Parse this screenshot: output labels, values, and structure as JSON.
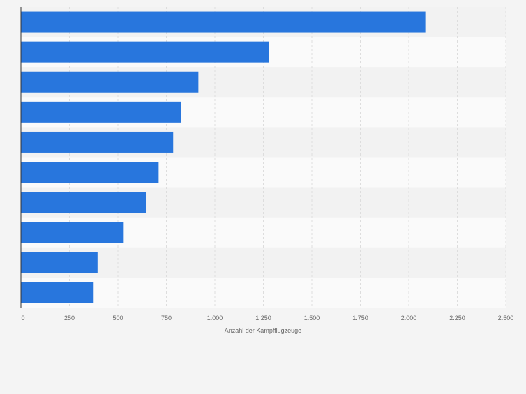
{
  "chart_data": {
    "type": "bar",
    "orientation": "horizontal",
    "categories": [
      "",
      "",
      "",
      "",
      "",
      "",
      "",
      "",
      "",
      ""
    ],
    "values": [
      2085,
      1280,
      915,
      825,
      785,
      710,
      645,
      530,
      395,
      375
    ],
    "title": "",
    "xlabel": "Anzahl der Kampfflugzeuge",
    "ylabel": "",
    "xlim": [
      0,
      2500
    ],
    "ticks": [
      0,
      250,
      500,
      750,
      1000,
      1250,
      1500,
      1750,
      2000,
      2250,
      2500
    ],
    "tick_labels": [
      "0",
      "250",
      "500",
      "750",
      "1.000",
      "1.250",
      "1.500",
      "1.750",
      "2.000",
      "2.250",
      "2.500"
    ],
    "grid": true,
    "bar_color": "#2876dd",
    "band_colors": [
      "#f2f2f2",
      "#fafafa"
    ]
  }
}
